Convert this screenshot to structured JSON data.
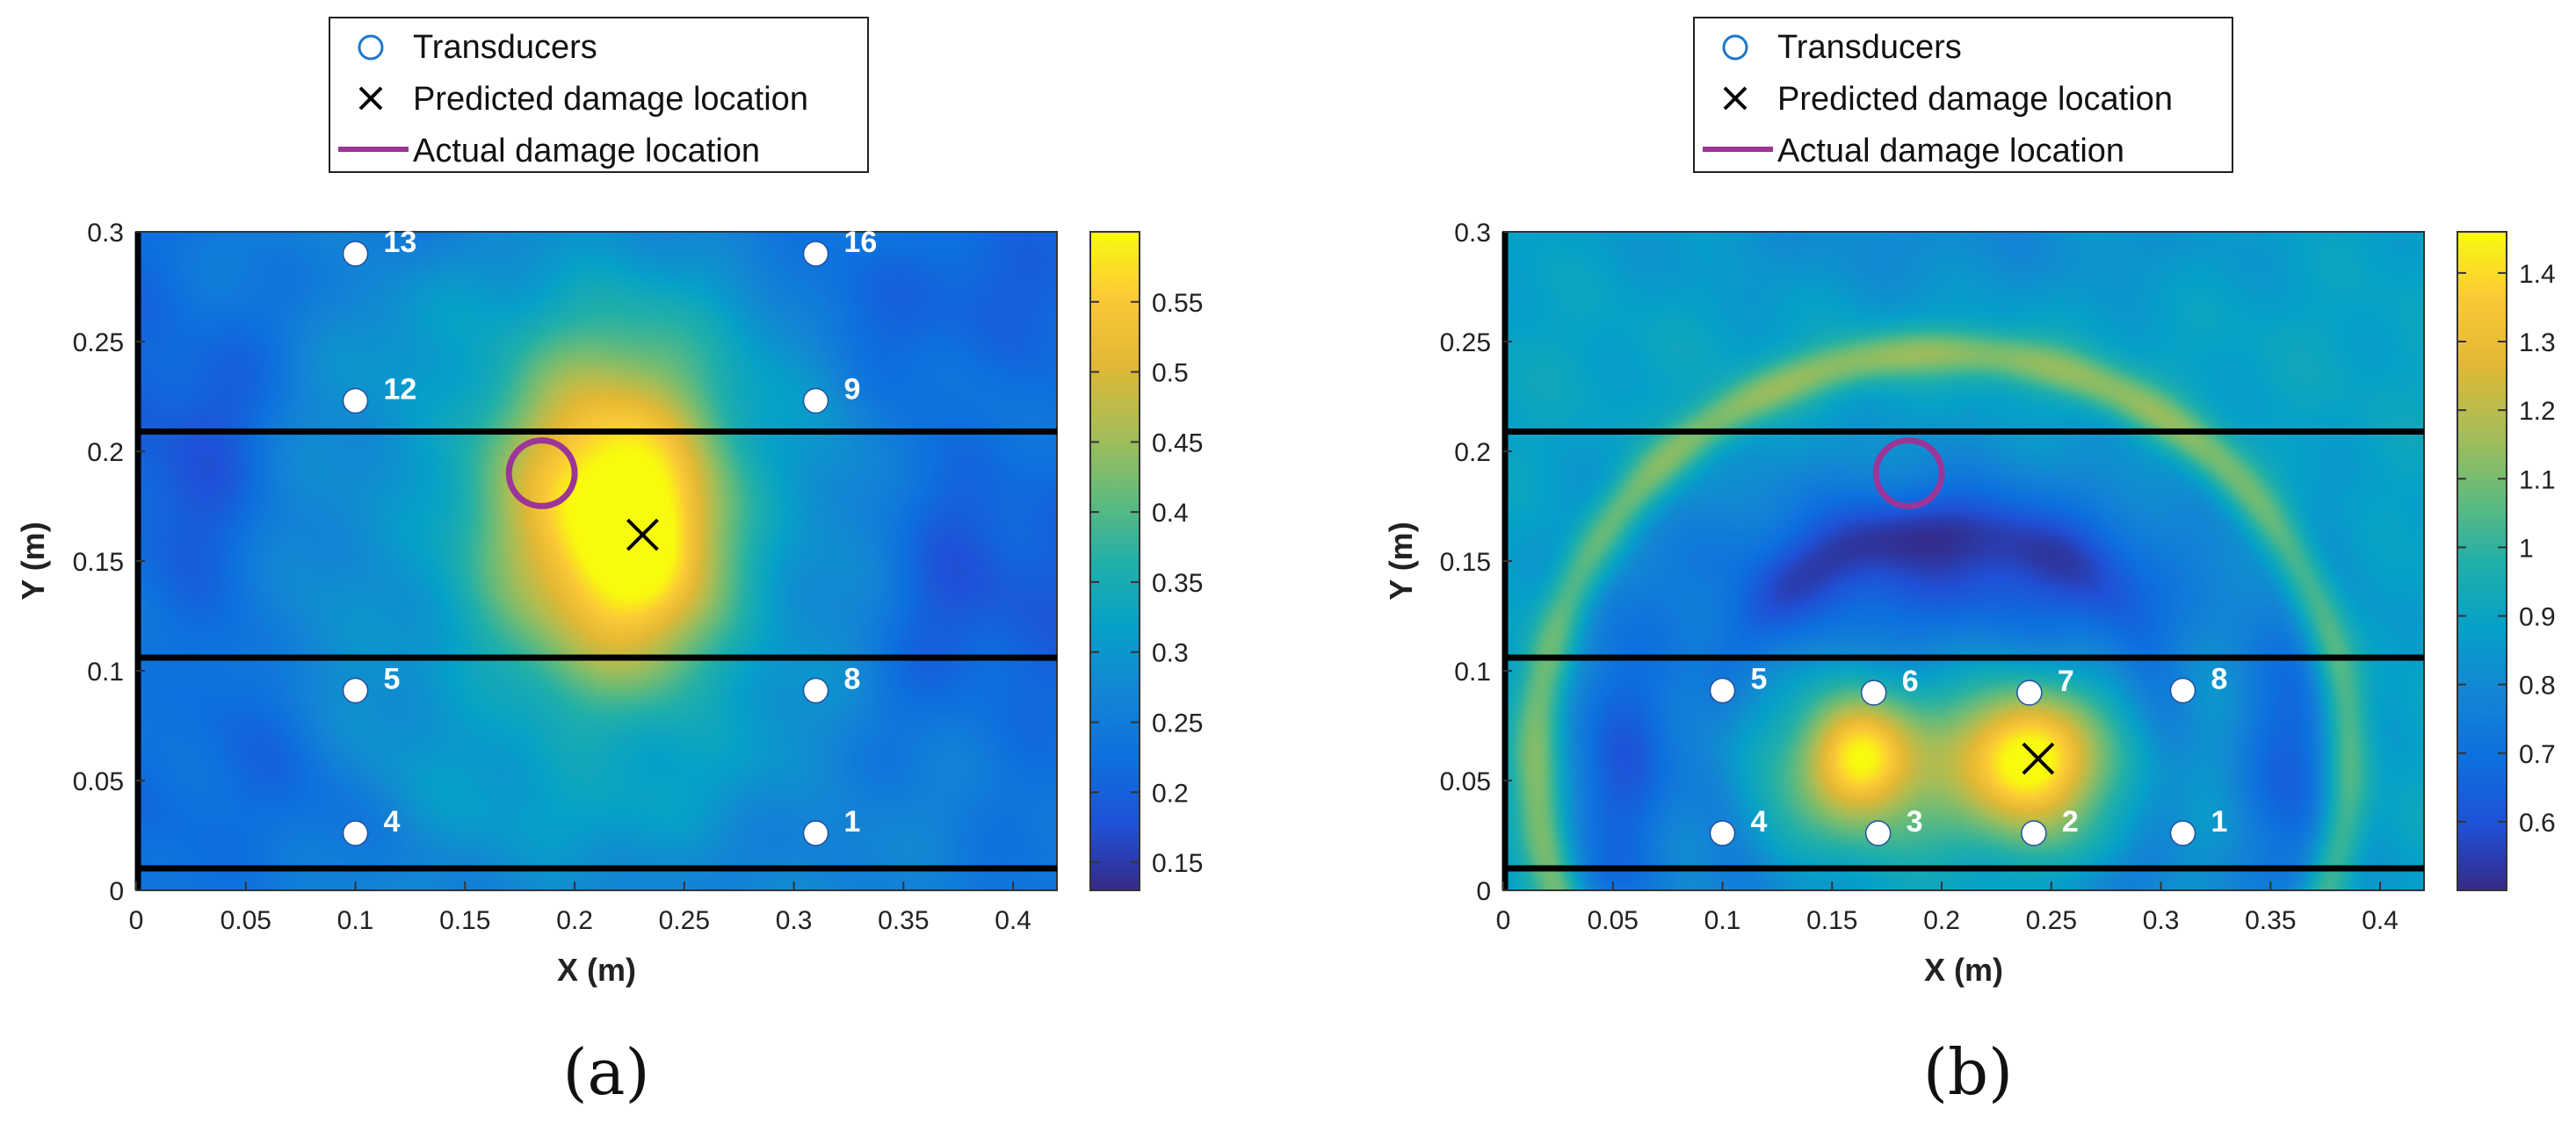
{
  "chart_data": [
    {
      "panel": "a",
      "type": "heatmap",
      "caption": "(a)",
      "xlabel": "X (m)",
      "ylabel": "Y (m)",
      "xlim": [
        0,
        0.42
      ],
      "ylim": [
        0,
        0.3
      ],
      "xticks": [
        0,
        0.05,
        0.1,
        0.15,
        0.2,
        0.25,
        0.3,
        0.35,
        0.4
      ],
      "yticks": [
        0,
        0.05,
        0.1,
        0.15,
        0.2,
        0.25,
        0.3
      ],
      "colorbar": {
        "range": [
          0.13,
          0.6
        ],
        "ticks": [
          0.15,
          0.2,
          0.25,
          0.3,
          0.35,
          0.4,
          0.45,
          0.5,
          0.55
        ]
      },
      "legend": [
        {
          "marker": "circle",
          "label": "Transducers"
        },
        {
          "marker": "x",
          "label": "Predicted damage location"
        },
        {
          "marker": "line",
          "label": "Actual damage location"
        }
      ],
      "horizontal_lines_y": [
        0.01,
        0.106,
        0.209
      ],
      "transducers": [
        {
          "id": "13",
          "x": 0.1,
          "y": 0.29
        },
        {
          "id": "16",
          "x": 0.31,
          "y": 0.29
        },
        {
          "id": "12",
          "x": 0.1,
          "y": 0.223
        },
        {
          "id": "9",
          "x": 0.31,
          "y": 0.223
        },
        {
          "id": "5",
          "x": 0.1,
          "y": 0.091
        },
        {
          "id": "8",
          "x": 0.31,
          "y": 0.091
        },
        {
          "id": "4",
          "x": 0.1,
          "y": 0.026
        },
        {
          "id": "1",
          "x": 0.31,
          "y": 0.026
        }
      ],
      "predicted_damage": {
        "x": 0.231,
        "y": 0.162
      },
      "actual_damage": {
        "x": 0.185,
        "y": 0.19,
        "radius": 0.015
      },
      "field": {
        "bg": 0.24,
        "blobs": [
          {
            "x": 0.218,
            "y": 0.175,
            "sx": 0.038,
            "sy": 0.055,
            "amp": 0.31
          },
          {
            "x": 0.238,
            "y": 0.148,
            "sx": 0.022,
            "sy": 0.035,
            "amp": 0.08
          },
          {
            "x": 0.19,
            "y": 0.16,
            "sx": 0.07,
            "sy": 0.09,
            "amp": 0.08
          },
          {
            "x": 0.02,
            "y": 0.2,
            "sx": 0.04,
            "sy": 0.06,
            "amp": -0.08
          },
          {
            "x": 0.39,
            "y": 0.14,
            "sx": 0.04,
            "sy": 0.05,
            "amp": -0.08
          },
          {
            "x": 0.05,
            "y": 0.05,
            "sx": 0.04,
            "sy": 0.04,
            "amp": -0.05
          },
          {
            "x": 0.37,
            "y": 0.27,
            "sx": 0.05,
            "sy": 0.03,
            "amp": -0.06
          },
          {
            "x": 0.2,
            "y": 0.29,
            "sx": 0.06,
            "sy": 0.02,
            "amp": -0.04
          }
        ],
        "rings": [
          {
            "x": 0.2,
            "y": 0.16,
            "r": 0.13,
            "w": 0.02,
            "amp": 0.04
          },
          {
            "x": 0.2,
            "y": 0.16,
            "r": 0.2,
            "w": 0.02,
            "amp": 0.03
          }
        ]
      }
    },
    {
      "panel": "b",
      "type": "heatmap",
      "caption": "(b)",
      "xlabel": "X (m)",
      "ylabel": "Y (m)",
      "xlim": [
        0,
        0.42
      ],
      "ylim": [
        0,
        0.3
      ],
      "xticks": [
        0,
        0.05,
        0.1,
        0.15,
        0.2,
        0.25,
        0.3,
        0.35,
        0.4
      ],
      "yticks": [
        0,
        0.05,
        0.1,
        0.15,
        0.2,
        0.25,
        0.3
      ],
      "colorbar": {
        "range": [
          0.5,
          1.46
        ],
        "ticks": [
          0.6,
          0.7,
          0.8,
          0.9,
          1,
          1.1,
          1.2,
          1.3,
          1.4
        ]
      },
      "legend": [
        {
          "marker": "circle",
          "label": "Transducers"
        },
        {
          "marker": "x",
          "label": "Predicted damage location"
        },
        {
          "marker": "line",
          "label": "Actual damage location"
        }
      ],
      "horizontal_lines_y": [
        0.01,
        0.106,
        0.209
      ],
      "transducers": [
        {
          "id": "5",
          "x": 0.1,
          "y": 0.091
        },
        {
          "id": "6",
          "x": 0.169,
          "y": 0.09
        },
        {
          "id": "7",
          "x": 0.24,
          "y": 0.09
        },
        {
          "id": "8",
          "x": 0.31,
          "y": 0.091
        },
        {
          "id": "4",
          "x": 0.1,
          "y": 0.026
        },
        {
          "id": "3",
          "x": 0.171,
          "y": 0.026
        },
        {
          "id": "2",
          "x": 0.242,
          "y": 0.026
        },
        {
          "id": "1",
          "x": 0.31,
          "y": 0.026
        }
      ],
      "predicted_damage": {
        "x": 0.244,
        "y": 0.06
      },
      "actual_damage": {
        "x": 0.185,
        "y": 0.19,
        "radius": 0.015
      },
      "field": {
        "bg": 0.9,
        "blobs": [
          {
            "x": 0.163,
            "y": 0.06,
            "sx": 0.016,
            "sy": 0.018,
            "amp": 0.45
          },
          {
            "x": 0.24,
            "y": 0.06,
            "sx": 0.02,
            "sy": 0.02,
            "amp": 0.5
          },
          {
            "x": 0.2,
            "y": 0.06,
            "sx": 0.06,
            "sy": 0.035,
            "amp": 0.18
          },
          {
            "x": 0.2,
            "y": 0.145,
            "sx": 0.09,
            "sy": 0.035,
            "amp": -0.3
          },
          {
            "x": 0.055,
            "y": 0.055,
            "sx": 0.02,
            "sy": 0.05,
            "amp": -0.28
          },
          {
            "x": 0.36,
            "y": 0.055,
            "sx": 0.02,
            "sy": 0.05,
            "amp": -0.26
          },
          {
            "x": 0.2,
            "y": 0.3,
            "sx": 0.1,
            "sy": 0.025,
            "amp": -0.1
          },
          {
            "x": 0.2,
            "y": 0.005,
            "sx": 0.2,
            "sy": 0.01,
            "amp": -0.05
          }
        ],
        "rings": [
          {
            "x": 0.2,
            "y": 0.06,
            "r": 0.185,
            "w": 0.008,
            "amp": 0.25
          },
          {
            "x": 0.2,
            "y": 0.06,
            "r": 0.105,
            "w": 0.012,
            "amp": -0.12
          }
        ]
      }
    }
  ]
}
